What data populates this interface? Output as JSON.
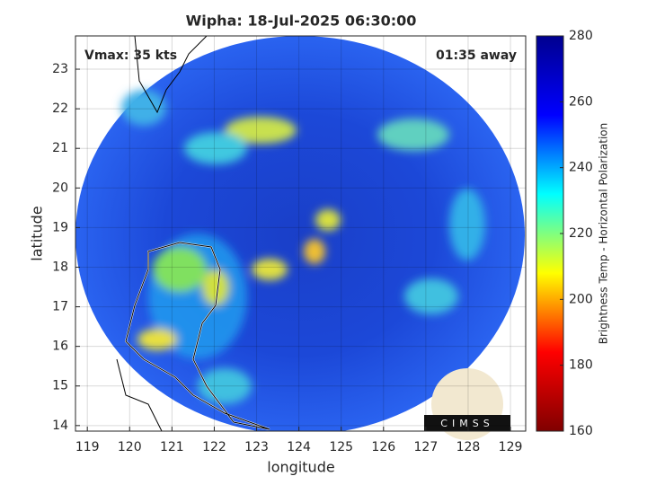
{
  "chart_data": {
    "type": "heatmap",
    "title": "Wipha: 18-Jul-2025 06:30:00",
    "xlabel": "longitude",
    "ylabel": "latitude",
    "annotations": [
      "Vmax: 35 kts",
      "01:35 away"
    ],
    "logo": "CIMSS",
    "xlim": [
      118.72,
      129.36
    ],
    "xticks": [
      119,
      120,
      121,
      122,
      123,
      124,
      125,
      126,
      127,
      128,
      129
    ],
    "ylim": [
      13.86,
      23.84
    ],
    "yticks": [
      14,
      15,
      16,
      17,
      18,
      19,
      20,
      21,
      22,
      23
    ],
    "grid": true,
    "colormap": "jet",
    "colorbar": {
      "label": "Brightness Temp - Horizontal Polarization",
      "lim": [
        160,
        280
      ],
      "ticks": [
        160,
        180,
        200,
        220,
        240,
        260,
        280
      ]
    }
  }
}
